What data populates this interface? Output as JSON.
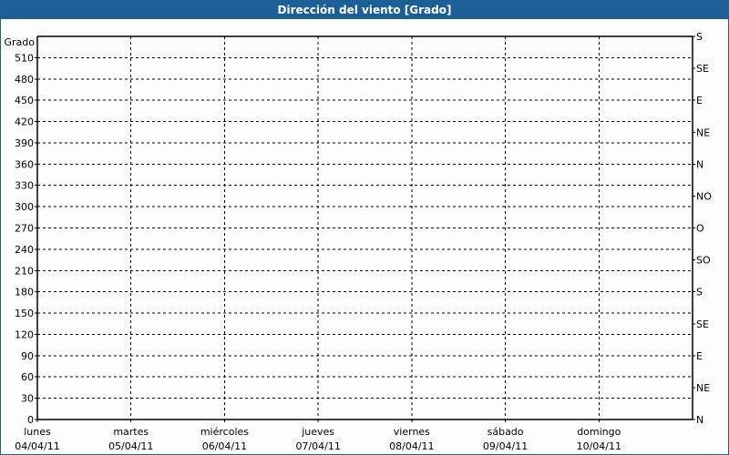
{
  "window": {
    "title": "Dirección del viento [Grado]",
    "title_bar_color": "#1c5f96"
  },
  "chart_data": {
    "type": "line",
    "title": "Dirección del viento [Grado]",
    "ylabel": "Grado",
    "ylim": [
      0,
      540
    ],
    "y_ticks": [
      0,
      30,
      60,
      90,
      120,
      150,
      180,
      210,
      240,
      270,
      300,
      330,
      360,
      390,
      420,
      450,
      480,
      510
    ],
    "right_axis": {
      "ticks": [
        0,
        45,
        90,
        135,
        180,
        225,
        270,
        315,
        360,
        405,
        450,
        495,
        540
      ],
      "labels": [
        "N",
        "NE",
        "E",
        "SE",
        "S",
        "SO",
        "O",
        "NO",
        "N",
        "NE",
        "E",
        "SE",
        "S"
      ]
    },
    "x_categories": [
      {
        "day": "lunes",
        "date": "04/04/11"
      },
      {
        "day": "martes",
        "date": "05/04/11"
      },
      {
        "day": "miércoles",
        "date": "06/04/11"
      },
      {
        "day": "jueves",
        "date": "07/04/11"
      },
      {
        "day": "viernes",
        "date": "08/04/11"
      },
      {
        "day": "sábado",
        "date": "09/04/11"
      },
      {
        "day": "domingo",
        "date": "10/04/11"
      }
    ],
    "x_days_span": 7,
    "grid": true,
    "series": []
  }
}
